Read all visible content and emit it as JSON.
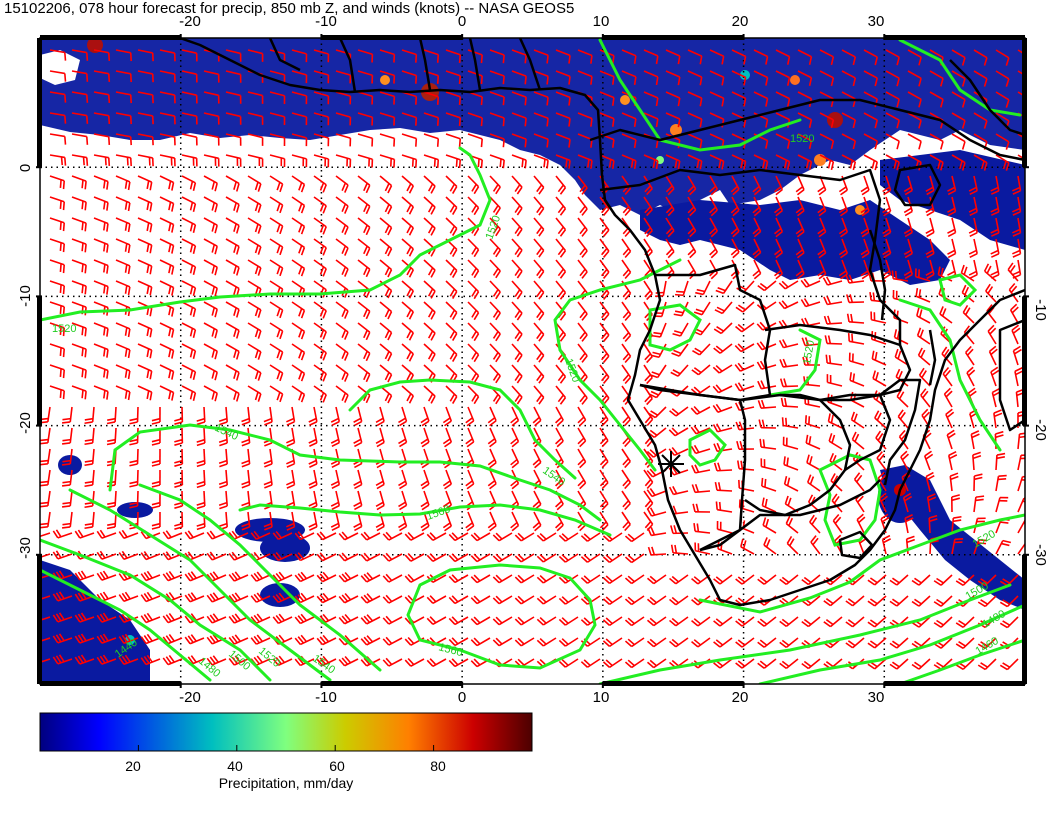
{
  "title": "15102206, 078 hour forecast for precip, 850 mb Z, and winds (knots) -- NASA GEOS5",
  "axes": {
    "x_ticks": [
      "-20",
      "-10",
      "0",
      "10",
      "20",
      "30"
    ],
    "y_ticks": [
      "0",
      "-10",
      "-20",
      "-30"
    ],
    "lon_values": [
      -20,
      -10,
      0,
      10,
      20,
      30
    ],
    "lat_values": [
      0,
      -10,
      -20,
      -30
    ],
    "lon_range": [
      -30,
      40
    ],
    "lat_range": [
      -40,
      10
    ],
    "grid": "dotted"
  },
  "colorbar": {
    "label": "Precipitation, mm/day",
    "ticks": [
      "20",
      "40",
      "60",
      "80"
    ],
    "tick_values": [
      20,
      40,
      60,
      80
    ],
    "range": [
      0,
      100
    ],
    "colors": [
      "#00007f",
      "#0000ff",
      "#00bfbf",
      "#7fff7f",
      "#cccc00",
      "#ff7f00",
      "#cc0000",
      "#4c0000"
    ]
  },
  "contours": {
    "color": "#22ee22",
    "labels": [
      "1520",
      "1520",
      "1520",
      "1520",
      "1520",
      "1540",
      "1540",
      "1560",
      "1560",
      "1440",
      "1480",
      "1500",
      "1520",
      "1540",
      "1460",
      "1480",
      "1500",
      "1520"
    ]
  },
  "wind_barb_color": "#ff0000",
  "coastline_color": "#000000",
  "precip_color": "#0a1aa0",
  "marker": "star"
}
